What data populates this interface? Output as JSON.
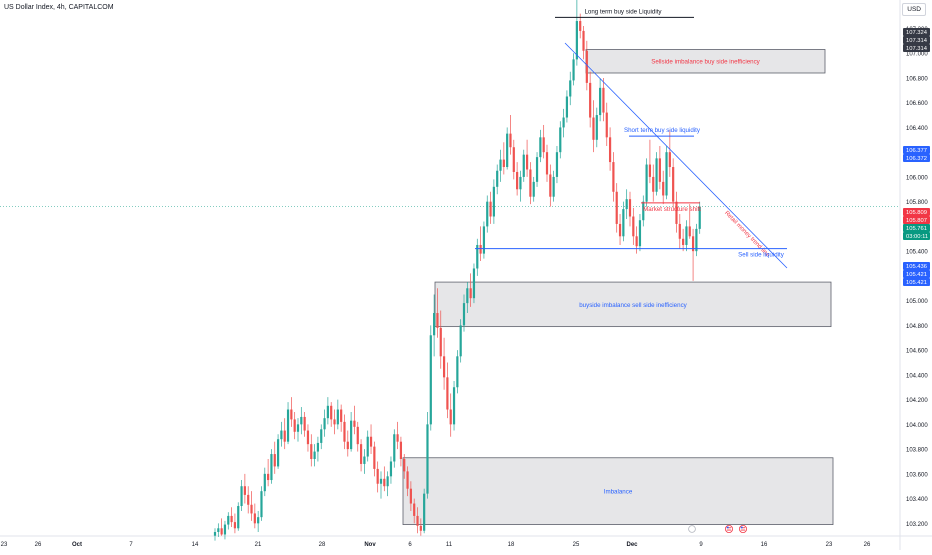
{
  "header": {
    "title": "US Dollar Index, 4h, CAPITALCOM",
    "currency": "USD"
  },
  "colors": {
    "up": "#26a69a",
    "down": "#ef5350",
    "blue": "#2962ff",
    "red": "#f23645",
    "black": "#131722",
    "zone_fill": "#e6e6e8",
    "zone_stroke": "#5d606b",
    "price_tag_dark": "#363a45",
    "price_tag_blue": "#2962ff",
    "price_tag_red": "#f23645",
    "price_tag_green": "#089981"
  },
  "chart_data": {
    "type": "candlestick",
    "ylim": [
      103.13,
      107.43
    ],
    "y_ticks": [
      "107.200",
      "107.000",
      "106.800",
      "106.600",
      "106.400",
      "106.200",
      "106.000",
      "105.800",
      "105.600",
      "105.400",
      "105.200",
      "105.000",
      "104.800",
      "104.600",
      "104.400",
      "104.200",
      "104.000",
      "103.800",
      "103.600",
      "103.400",
      "103.200"
    ],
    "x_ticks": [
      "23",
      "26",
      "Oct",
      "7",
      "14",
      "21",
      "28",
      "Nov",
      "6",
      "11",
      "18",
      "25",
      "Dec",
      "9",
      "16",
      "23",
      "26"
    ],
    "x_ticks_bold": [
      "Oct",
      "Nov",
      "Dec"
    ],
    "price_tags": [
      {
        "text": "107.324",
        "style": "dark"
      },
      {
        "text": "107.314",
        "style": "dark"
      },
      {
        "text": "107.314",
        "style": "dark"
      },
      {
        "text": "106.377",
        "style": "blue"
      },
      {
        "text": "106.372",
        "style": "blue"
      },
      {
        "text": "105.809",
        "style": "red"
      },
      {
        "text": "105.807",
        "style": "red"
      },
      {
        "text": "105.761",
        "style": "green"
      },
      {
        "text": "03:00:11",
        "style": "green"
      },
      {
        "text": "105.436",
        "style": "blue"
      },
      {
        "text": "105.421",
        "style": "blue"
      },
      {
        "text": "105.421",
        "style": "blue"
      }
    ],
    "current_price": 105.761,
    "zones": [
      {
        "label": "Sellside imbalance buy side inefficiency",
        "y_top": 107.03,
        "y_bottom": 106.84,
        "label_color": "red"
      },
      {
        "label": "buyside imbalance sell side inefficiency",
        "y_top": 105.15,
        "y_bottom": 104.79,
        "label_color": "blue"
      },
      {
        "label": "Imbalance",
        "y_top": 103.73,
        "y_bottom": 103.19,
        "label_color": "blue"
      }
    ],
    "levels": [
      {
        "label": "Long term buy side Liquidity",
        "y": 107.29,
        "color": "black"
      },
      {
        "label": "Short term buy side liquidity",
        "y": 106.33,
        "color": "blue"
      },
      {
        "label": "Market structure shift",
        "y": 105.79,
        "color": "red"
      },
      {
        "label": "Sell side liquidity",
        "y": 105.42,
        "color": "blue"
      }
    ],
    "trendline_label": "Retail money trend line",
    "candles": [
      [
        103.1,
        103.16,
        103.06,
        103.13
      ],
      [
        103.13,
        103.2,
        103.09,
        103.16
      ],
      [
        103.16,
        103.24,
        103.1,
        103.11
      ],
      [
        103.11,
        103.22,
        103.07,
        103.19
      ],
      [
        103.19,
        103.29,
        103.15,
        103.26
      ],
      [
        103.26,
        103.33,
        103.17,
        103.21
      ],
      [
        103.21,
        103.28,
        103.12,
        103.16
      ],
      [
        103.16,
        103.37,
        103.14,
        103.34
      ],
      [
        103.34,
        103.55,
        103.3,
        103.5
      ],
      [
        103.5,
        103.6,
        103.36,
        103.43
      ],
      [
        103.43,
        103.5,
        103.28,
        103.35
      ],
      [
        103.35,
        103.46,
        103.22,
        103.28
      ],
      [
        103.28,
        103.36,
        103.16,
        103.2
      ],
      [
        103.2,
        103.3,
        103.13,
        103.25
      ],
      [
        103.25,
        103.5,
        103.22,
        103.46
      ],
      [
        103.46,
        103.65,
        103.42,
        103.6
      ],
      [
        103.6,
        103.72,
        103.5,
        103.55
      ],
      [
        103.55,
        103.8,
        103.52,
        103.76
      ],
      [
        103.76,
        103.86,
        103.6,
        103.66
      ],
      [
        103.66,
        103.92,
        103.64,
        103.88
      ],
      [
        103.88,
        104.02,
        103.82,
        103.95
      ],
      [
        103.95,
        104.05,
        103.8,
        103.86
      ],
      [
        103.86,
        104.18,
        103.84,
        104.12
      ],
      [
        104.12,
        104.22,
        103.98,
        104.04
      ],
      [
        104.04,
        104.1,
        103.88,
        103.94
      ],
      [
        103.94,
        104.05,
        103.86,
        104.0
      ],
      [
        104.0,
        104.14,
        103.92,
        104.06
      ],
      [
        104.06,
        104.1,
        103.9,
        103.95
      ],
      [
        103.95,
        104.0,
        103.78,
        103.84
      ],
      [
        103.84,
        103.92,
        103.66,
        103.72
      ],
      [
        103.72,
        103.84,
        103.66,
        103.78
      ],
      [
        103.78,
        103.9,
        103.7,
        103.85
      ],
      [
        103.85,
        104.0,
        103.8,
        103.96
      ],
      [
        103.96,
        104.12,
        103.9,
        104.05
      ],
      [
        104.05,
        104.22,
        104.0,
        104.15
      ],
      [
        104.15,
        104.18,
        103.98,
        104.04
      ],
      [
        104.04,
        104.12,
        103.92,
        104.0
      ],
      [
        104.0,
        104.2,
        103.96,
        104.12
      ],
      [
        104.12,
        104.16,
        103.94,
        104.02
      ],
      [
        104.02,
        104.08,
        103.8,
        103.86
      ],
      [
        103.86,
        103.95,
        103.74,
        103.8
      ],
      [
        103.8,
        104.1,
        103.78,
        104.03
      ],
      [
        104.03,
        104.15,
        103.92,
        103.98
      ],
      [
        103.98,
        104.02,
        103.78,
        103.84
      ],
      [
        103.84,
        103.88,
        103.62,
        103.68
      ],
      [
        103.68,
        103.8,
        103.6,
        103.74
      ],
      [
        103.74,
        103.95,
        103.7,
        103.9
      ],
      [
        103.9,
        104.0,
        103.76,
        103.82
      ],
      [
        103.82,
        103.86,
        103.58,
        103.64
      ],
      [
        103.64,
        103.7,
        103.45,
        103.52
      ],
      [
        103.52,
        103.62,
        103.4,
        103.56
      ],
      [
        103.56,
        103.66,
        103.46,
        103.5
      ],
      [
        103.5,
        103.62,
        103.42,
        103.58
      ],
      [
        103.58,
        103.74,
        103.52,
        103.7
      ],
      [
        103.7,
        103.96,
        103.65,
        103.92
      ],
      [
        103.92,
        104.02,
        103.8,
        103.86
      ],
      [
        103.86,
        103.9,
        103.66,
        103.72
      ],
      [
        103.72,
        103.76,
        103.56,
        103.62
      ],
      [
        103.62,
        103.66,
        103.42,
        103.48
      ],
      [
        103.48,
        103.54,
        103.3,
        103.36
      ],
      [
        103.36,
        103.4,
        103.2,
        103.26
      ],
      [
        103.26,
        103.33,
        103.12,
        103.18
      ],
      [
        103.18,
        103.24,
        103.1,
        103.14
      ],
      [
        103.14,
        103.48,
        103.12,
        103.44
      ],
      [
        103.44,
        104.1,
        103.4,
        104.0
      ],
      [
        104.0,
        104.8,
        103.95,
        104.72
      ],
      [
        104.72,
        105.05,
        104.55,
        104.9
      ],
      [
        104.9,
        105.1,
        104.7,
        104.78
      ],
      [
        104.78,
        104.92,
        104.45,
        104.55
      ],
      [
        104.55,
        104.7,
        104.28,
        104.38
      ],
      [
        104.38,
        104.5,
        104.05,
        104.12
      ],
      [
        104.12,
        104.25,
        103.9,
        104.0
      ],
      [
        104.0,
        104.35,
        103.95,
        104.3
      ],
      [
        104.3,
        104.6,
        104.25,
        104.55
      ],
      [
        104.55,
        104.85,
        104.5,
        104.8
      ],
      [
        104.8,
        105.05,
        104.75,
        104.98
      ],
      [
        104.98,
        105.15,
        104.9,
        105.1
      ],
      [
        105.1,
        105.22,
        104.95,
        105.02
      ],
      [
        105.02,
        105.3,
        104.98,
        105.26
      ],
      [
        105.26,
        105.5,
        105.2,
        105.45
      ],
      [
        105.45,
        105.6,
        105.32,
        105.38
      ],
      [
        105.38,
        105.64,
        105.34,
        105.6
      ],
      [
        105.6,
        105.85,
        105.55,
        105.8
      ],
      [
        105.8,
        105.88,
        105.62,
        105.68
      ],
      [
        105.68,
        105.98,
        105.62,
        105.92
      ],
      [
        105.92,
        106.1,
        105.86,
        106.05
      ],
      [
        106.05,
        106.22,
        105.96,
        106.14
      ],
      [
        106.14,
        106.28,
        106.02,
        106.08
      ],
      [
        106.08,
        106.4,
        106.06,
        106.35
      ],
      [
        106.35,
        106.5,
        106.18,
        106.24
      ],
      [
        106.24,
        106.3,
        105.98,
        106.04
      ],
      [
        106.04,
        106.12,
        105.85,
        105.9
      ],
      [
        105.9,
        106.05,
        105.8,
        106.0
      ],
      [
        106.0,
        106.22,
        105.96,
        106.18
      ],
      [
        106.18,
        106.3,
        106.0,
        106.06
      ],
      [
        106.06,
        106.12,
        105.78,
        105.84
      ],
      [
        105.84,
        106.0,
        105.8,
        105.96
      ],
      [
        105.96,
        106.2,
        105.92,
        106.16
      ],
      [
        106.16,
        106.38,
        106.12,
        106.32
      ],
      [
        106.32,
        106.42,
        106.15,
        106.2
      ],
      [
        106.2,
        106.26,
        105.96,
        106.02
      ],
      [
        106.02,
        106.1,
        105.76,
        105.84
      ],
      [
        105.84,
        106.05,
        105.8,
        106.0
      ],
      [
        106.0,
        106.25,
        105.95,
        106.2
      ],
      [
        106.2,
        106.45,
        106.15,
        106.4
      ],
      [
        106.4,
        106.55,
        106.32,
        106.48
      ],
      [
        106.48,
        106.7,
        106.44,
        106.65
      ],
      [
        106.65,
        106.85,
        106.58,
        106.78
      ],
      [
        106.78,
        107.0,
        106.74,
        106.95
      ],
      [
        106.95,
        107.43,
        106.9,
        107.26
      ],
      [
        107.26,
        107.32,
        107.12,
        107.18
      ],
      [
        107.18,
        107.22,
        106.95,
        107.02
      ],
      [
        107.02,
        107.1,
        106.7,
        106.76
      ],
      [
        106.76,
        106.85,
        106.4,
        106.48
      ],
      [
        106.48,
        106.62,
        106.2,
        106.3
      ],
      [
        106.3,
        106.56,
        106.24,
        106.5
      ],
      [
        106.5,
        106.8,
        106.45,
        106.72
      ],
      [
        106.72,
        106.8,
        106.45,
        106.52
      ],
      [
        106.52,
        106.6,
        106.25,
        106.32
      ],
      [
        106.32,
        106.4,
        106.05,
        106.12
      ],
      [
        106.12,
        106.2,
        105.8,
        105.88
      ],
      [
        105.88,
        105.95,
        105.55,
        105.62
      ],
      [
        105.62,
        105.7,
        105.45,
        105.52
      ],
      [
        105.52,
        105.8,
        105.48,
        105.74
      ],
      [
        105.74,
        105.9,
        105.66,
        105.82
      ],
      [
        105.82,
        105.88,
        105.6,
        105.68
      ],
      [
        105.68,
        105.75,
        105.45,
        105.52
      ],
      [
        105.52,
        105.6,
        105.38,
        105.44
      ],
      [
        105.44,
        105.7,
        105.4,
        105.65
      ],
      [
        105.65,
        105.85,
        105.6,
        105.8
      ],
      [
        105.8,
        106.15,
        105.76,
        106.1
      ],
      [
        106.1,
        106.3,
        105.95,
        106.0
      ],
      [
        106.0,
        106.1,
        105.8,
        105.88
      ],
      [
        105.88,
        106.2,
        105.85,
        106.15
      ],
      [
        106.15,
        106.25,
        105.9,
        105.96
      ],
      [
        105.96,
        106.05,
        105.78,
        105.85
      ],
      [
        105.85,
        106.25,
        105.82,
        106.2
      ],
      [
        106.2,
        106.38,
        106.0,
        106.08
      ],
      [
        106.08,
        106.15,
        105.75,
        105.8
      ],
      [
        105.8,
        105.88,
        105.55,
        105.62
      ],
      [
        105.62,
        105.7,
        105.42,
        105.5
      ],
      [
        105.5,
        105.58,
        105.4,
        105.45
      ],
      [
        105.45,
        105.65,
        105.4,
        105.6
      ],
      [
        105.6,
        105.78,
        105.5,
        105.52
      ],
      [
        105.52,
        105.58,
        105.16,
        105.4
      ],
      [
        105.4,
        105.62,
        105.36,
        105.58
      ],
      [
        105.58,
        105.8,
        105.54,
        105.76
      ]
    ]
  }
}
